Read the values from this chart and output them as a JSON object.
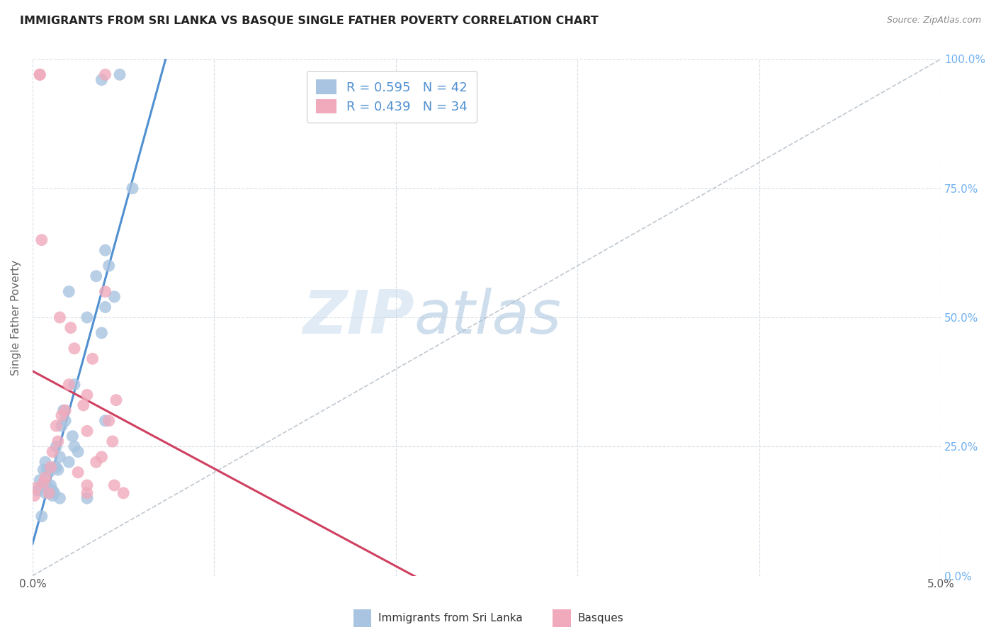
{
  "title": "IMMIGRANTS FROM SRI LANKA VS BASQUE SINGLE FATHER POVERTY CORRELATION CHART",
  "source": "Source: ZipAtlas.com",
  "ylabel_label": "Single Father Poverty",
  "y_right_ticks": [
    "0.0%",
    "25.0%",
    "50.0%",
    "75.0%",
    "100.0%"
  ],
  "x_ticks": [
    0.0,
    1.0,
    2.0,
    3.0,
    4.0,
    5.0
  ],
  "x_tick_labels": [
    "0.0%",
    "",
    "",
    "",
    "",
    "5.0%"
  ],
  "legend_blue_r": "0.595",
  "legend_blue_n": "42",
  "legend_pink_r": "0.439",
  "legend_pink_n": "34",
  "legend_label_blue": "Immigrants from Sri Lanka",
  "legend_label_pink": "Basques",
  "watermark": "ZIPatlas",
  "blue_color": "#a8c4e0",
  "blue_line_color": "#5090d0",
  "pink_color": "#f0aabc",
  "pink_line_color": "#d04060",
  "diagonal_color": "#c0c8d0",
  "background_color": "#ffffff",
  "grid_color": "#d8dde5",
  "title_color": "#222222",
  "right_axis_color": "#70b0f0",
  "sri_lanka_x": [
    0.03,
    0.04,
    0.05,
    0.06,
    0.06,
    0.07,
    0.07,
    0.08,
    0.08,
    0.09,
    0.1,
    0.1,
    0.11,
    0.11,
    0.12,
    0.12,
    0.13,
    0.13,
    0.14,
    0.15,
    0.15,
    0.16,
    0.17,
    0.18,
    0.2,
    0.22,
    0.23,
    0.23,
    0.25,
    0.3,
    0.35,
    0.38,
    0.4,
    0.4,
    0.42,
    0.45,
    0.3,
    0.55,
    0.2,
    0.4,
    0.48,
    0.38
  ],
  "sri_lanka_y": [
    0.165,
    0.185,
    0.115,
    0.18,
    0.205,
    0.16,
    0.22,
    0.175,
    0.205,
    0.2,
    0.175,
    0.165,
    0.165,
    0.155,
    0.16,
    0.21,
    0.25,
    0.21,
    0.205,
    0.23,
    0.15,
    0.29,
    0.32,
    0.3,
    0.22,
    0.27,
    0.37,
    0.25,
    0.24,
    0.5,
    0.58,
    0.47,
    0.52,
    0.3,
    0.6,
    0.54,
    0.15,
    0.75,
    0.55,
    0.63,
    0.97,
    0.96
  ],
  "basque_x": [
    0.01,
    0.02,
    0.04,
    0.04,
    0.05,
    0.06,
    0.07,
    0.09,
    0.1,
    0.11,
    0.13,
    0.14,
    0.16,
    0.18,
    0.2,
    0.21,
    0.23,
    0.25,
    0.28,
    0.3,
    0.3,
    0.33,
    0.35,
    0.38,
    0.4,
    0.42,
    0.44,
    0.46,
    0.3,
    0.3,
    0.15,
    0.4,
    0.45,
    0.5
  ],
  "basque_y": [
    0.155,
    0.17,
    0.97,
    0.97,
    0.65,
    0.18,
    0.19,
    0.16,
    0.21,
    0.24,
    0.29,
    0.26,
    0.31,
    0.32,
    0.37,
    0.48,
    0.44,
    0.2,
    0.33,
    0.28,
    0.35,
    0.42,
    0.22,
    0.23,
    0.55,
    0.3,
    0.26,
    0.34,
    0.175,
    0.16,
    0.5,
    0.97,
    0.175,
    0.16
  ],
  "x_min": 0.0,
  "x_max": 5.0,
  "y_min": 0.0,
  "y_max": 1.0,
  "blue_line_x_start": 0.0,
  "blue_line_x_end": 2.7,
  "pink_line_x_start": 0.0,
  "pink_line_x_end": 5.0
}
